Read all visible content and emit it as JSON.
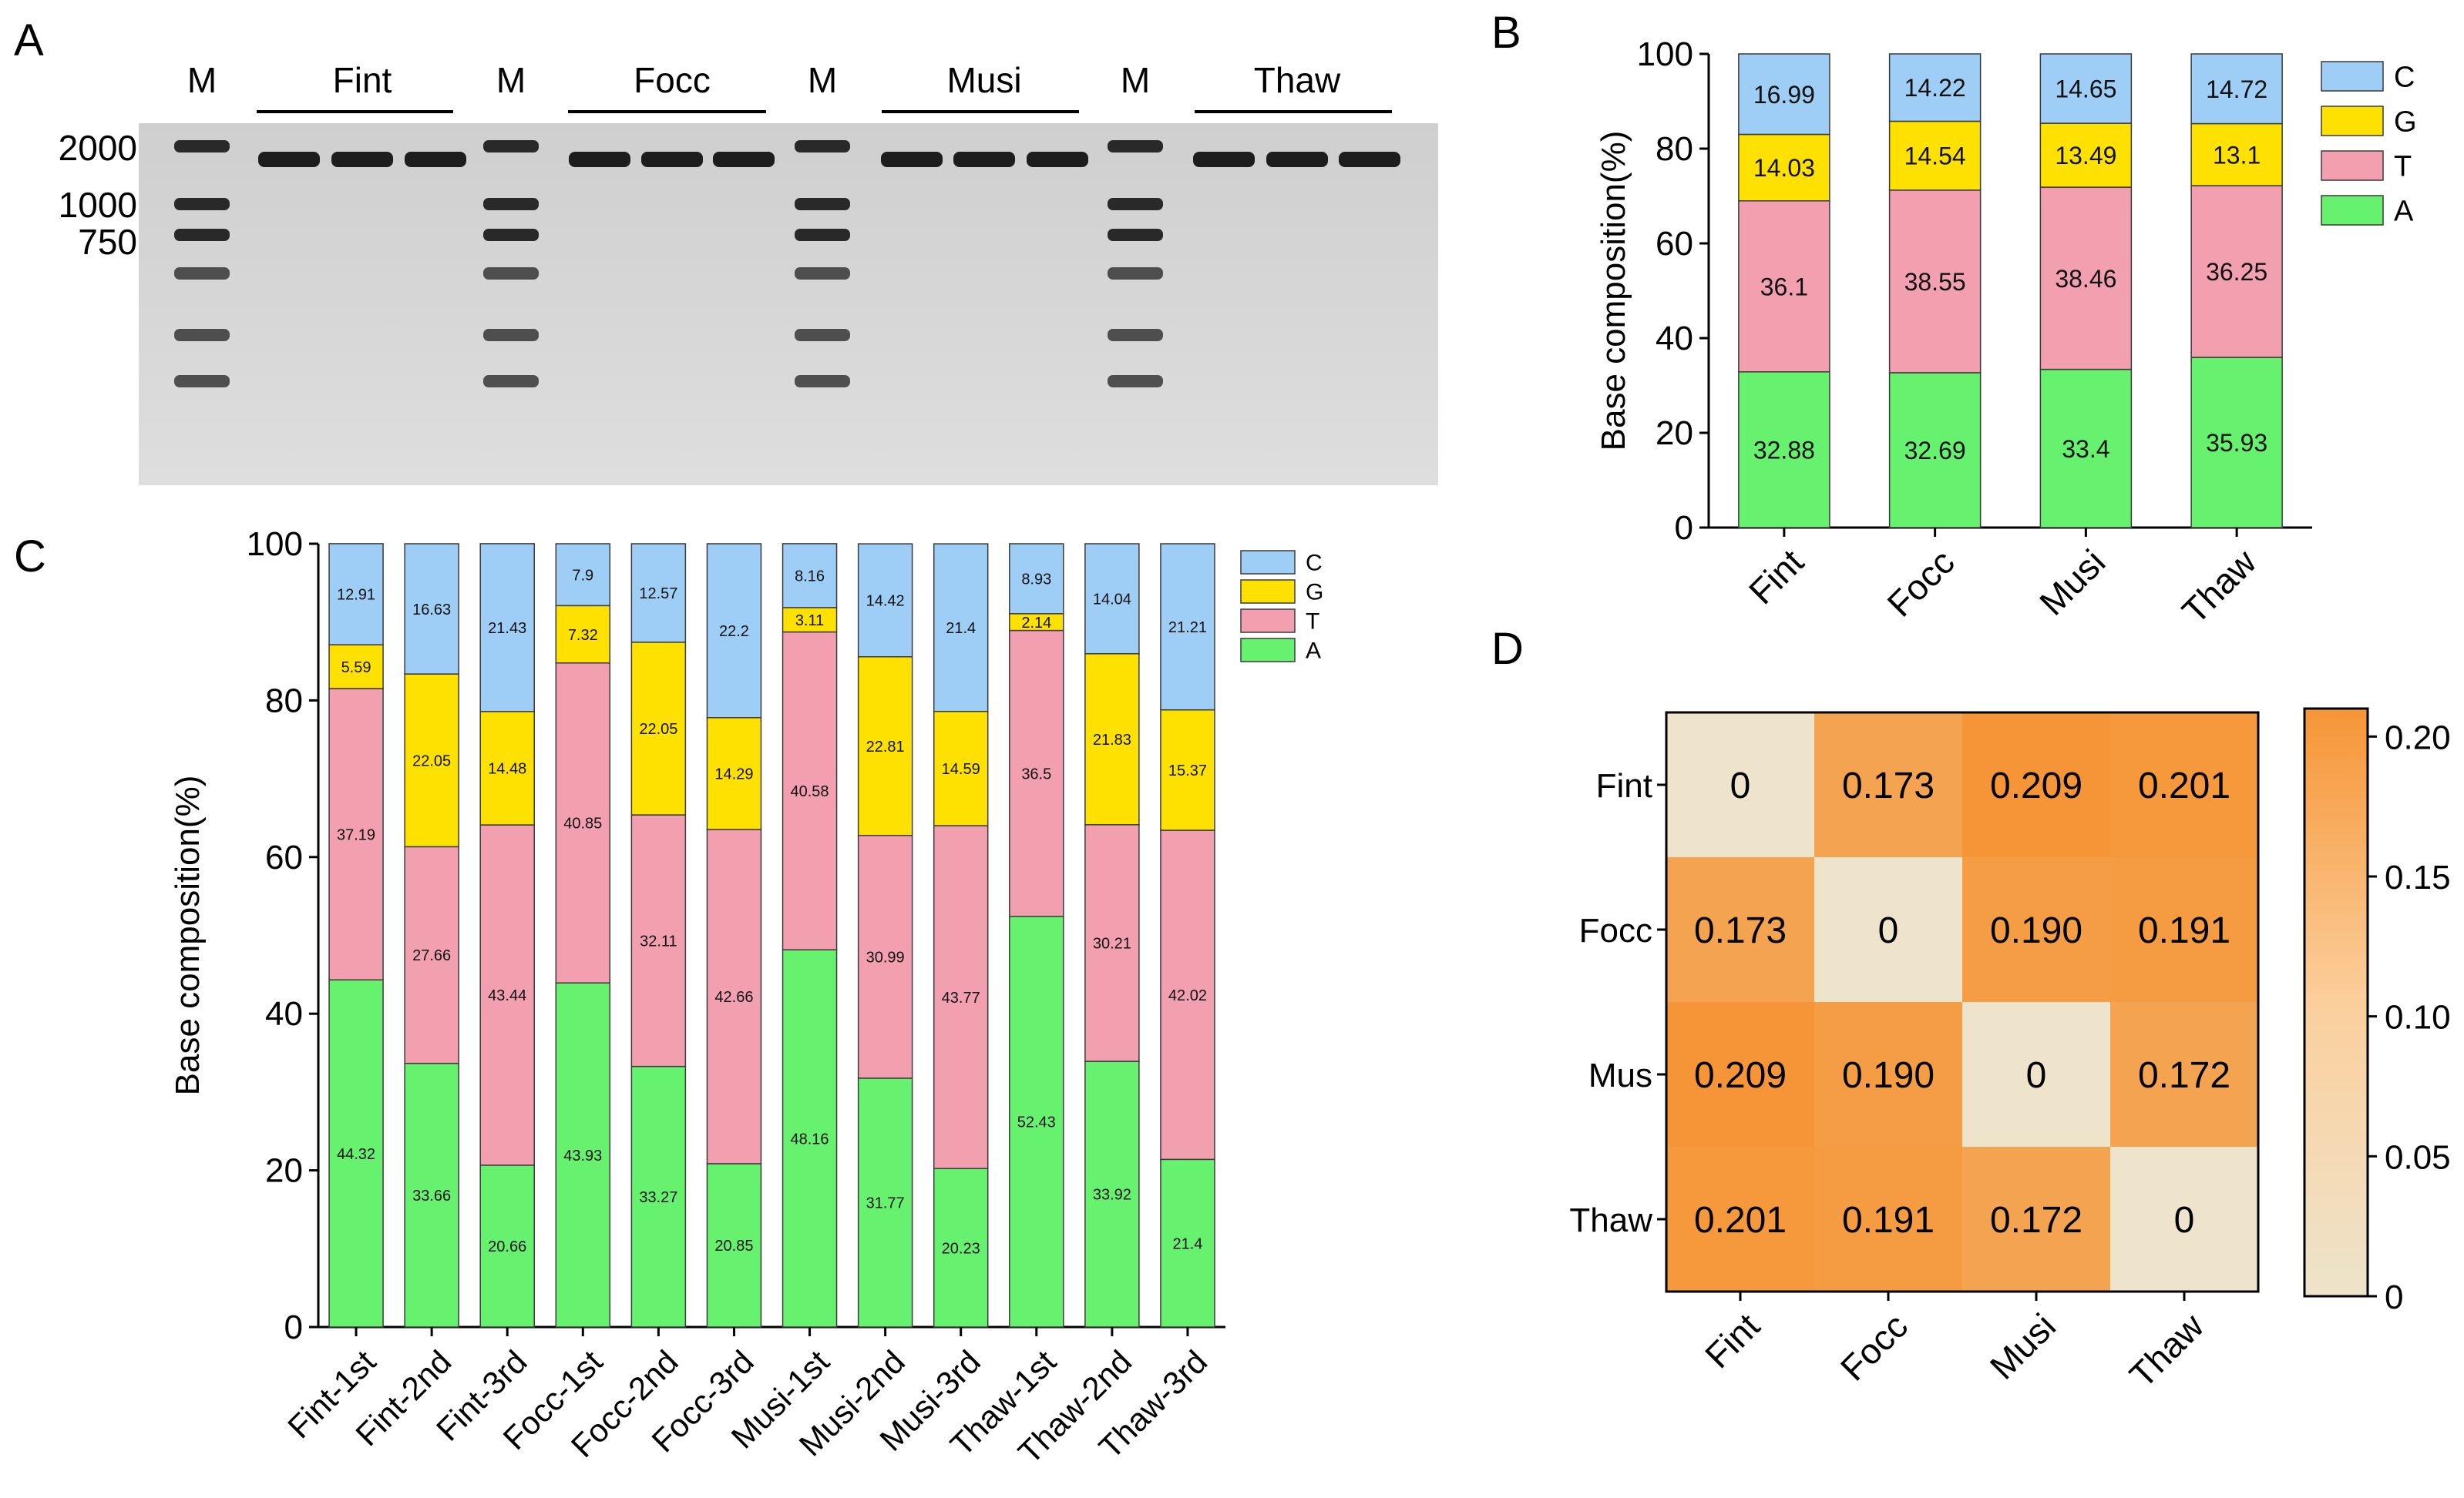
{
  "panels": {
    "A": {
      "label": "A",
      "lane_labels": [
        "M",
        "Fint",
        "M",
        "Focc",
        "M",
        "Musi",
        "M",
        "Thaw"
      ],
      "marker_sizes": [
        "2000",
        "1000",
        "750"
      ]
    },
    "B": {
      "label": "B"
    },
    "C": {
      "label": "C"
    },
    "D": {
      "label": "D"
    }
  },
  "colors": {
    "A": "#66f26f",
    "T": "#f2a0b0",
    "G": "#ffe100",
    "C": "#9ecdf5",
    "heat_low": "#ede4cb",
    "heat_high": "#f69536"
  },
  "chart_data": [
    {
      "id": "B",
      "type": "bar",
      "stacked": true,
      "title": "",
      "xlabel": "",
      "ylabel": "Base composition(%)",
      "ylim": [
        0,
        100
      ],
      "yticks": [
        0,
        20,
        40,
        60,
        80,
        100
      ],
      "categories": [
        "Fint",
        "Focc",
        "Musi",
        "Thaw"
      ],
      "legend_position": "top-right",
      "series": [
        {
          "name": "A",
          "values": [
            32.88,
            32.69,
            33.4,
            35.93
          ]
        },
        {
          "name": "T",
          "values": [
            36.1,
            38.55,
            38.46,
            36.25
          ]
        },
        {
          "name": "G",
          "values": [
            14.03,
            14.54,
            13.49,
            13.1
          ]
        },
        {
          "name": "C",
          "values": [
            16.99,
            14.22,
            14.65,
            14.72
          ]
        }
      ],
      "legend_order": [
        "C",
        "G",
        "T",
        "A"
      ]
    },
    {
      "id": "C",
      "type": "bar",
      "stacked": true,
      "title": "",
      "xlabel": "",
      "ylabel": "Base composition(%)",
      "ylim": [
        0,
        100
      ],
      "yticks": [
        0,
        20,
        40,
        60,
        80,
        100
      ],
      "categories": [
        "Fint-1st",
        "Fint-2nd",
        "Fint-3rd",
        "Focc-1st",
        "Focc-2nd",
        "Focc-3rd",
        "Musi-1st",
        "Musi-2nd",
        "Musi-3rd",
        "Thaw-1st",
        "Thaw-2nd",
        "Thaw-3rd"
      ],
      "legend_position": "top-right",
      "series": [
        {
          "name": "A",
          "values": [
            44.32,
            33.66,
            20.66,
            43.93,
            33.27,
            20.85,
            48.16,
            31.77,
            20.23,
            52.43,
            33.92,
            21.4
          ]
        },
        {
          "name": "T",
          "values": [
            37.19,
            27.66,
            43.44,
            40.85,
            32.11,
            42.66,
            40.58,
            30.99,
            43.77,
            36.5,
            30.21,
            42.02
          ]
        },
        {
          "name": "G",
          "values": [
            5.59,
            22.05,
            14.48,
            7.32,
            22.05,
            14.29,
            3.11,
            22.81,
            14.59,
            2.14,
            21.83,
            15.37
          ]
        },
        {
          "name": "C",
          "values": [
            12.91,
            16.63,
            21.43,
            7.9,
            12.57,
            22.2,
            8.16,
            14.42,
            21.4,
            8.93,
            14.04,
            21.21
          ]
        }
      ],
      "legend_order": [
        "C",
        "G",
        "T",
        "A"
      ]
    },
    {
      "id": "D",
      "type": "heatmap",
      "title": "",
      "x_categories": [
        "Fint",
        "Focc",
        "Musi",
        "Thaw"
      ],
      "y_categories": [
        "Fint",
        "Focc",
        "Mus",
        "Thaw"
      ],
      "values": [
        [
          0,
          0.173,
          0.209,
          0.201
        ],
        [
          0.173,
          0,
          0.19,
          0.191
        ],
        [
          0.209,
          0.19,
          0,
          0.172
        ],
        [
          0.201,
          0.191,
          0.172,
          0
        ]
      ],
      "value_labels": [
        [
          "0",
          "0.173",
          "0.209",
          "0.201"
        ],
        [
          "0.173",
          "0",
          "0.190",
          "0.191"
        ],
        [
          "0.209",
          "0.190",
          "0",
          "0.172"
        ],
        [
          "0.201",
          "0.191",
          "0.172",
          "0"
        ]
      ],
      "colorbar_range": [
        0,
        0.21
      ],
      "colorbar_ticks": [
        0,
        0.05,
        0.1,
        0.15,
        0.2
      ],
      "colorbar_tick_labels": [
        "0",
        "0.05",
        "0.10",
        "0.15",
        "0.20"
      ]
    }
  ]
}
